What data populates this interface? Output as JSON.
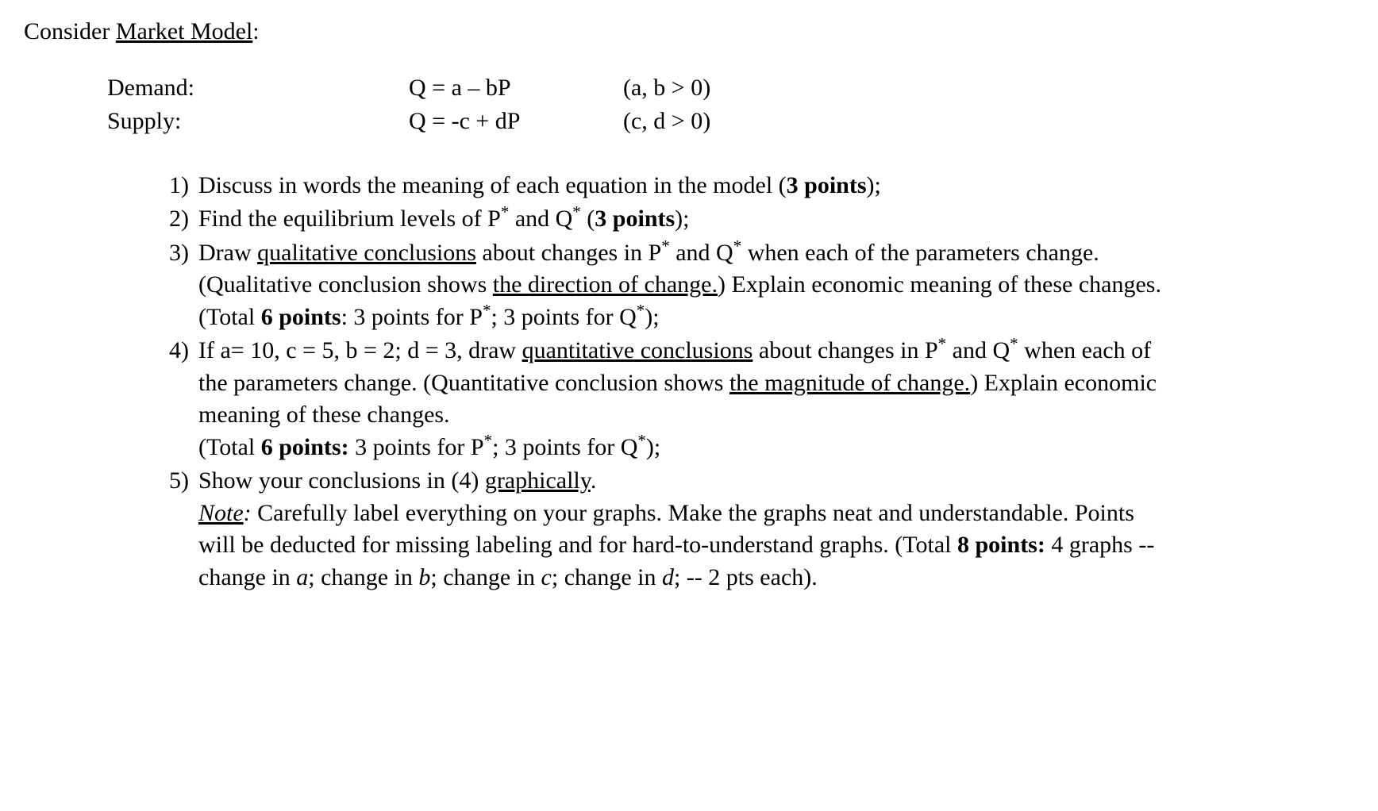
{
  "title_prefix": "Consider ",
  "title_underlined": "Market Model",
  "title_suffix": ":",
  "model": {
    "demand_label": "Demand:",
    "demand_eq": "Q = a – bP",
    "demand_cond": "(a, b > 0)",
    "supply_label": "Supply:",
    "supply_eq": "Q = -c + dP",
    "supply_cond": "(c, d > 0)"
  },
  "questions": [
    {
      "num": "1)",
      "html": "Discuss in words the meaning of each equation in the model (<span class='bold'>3 points</span>);"
    },
    {
      "num": "2)",
      "html": "Find the equilibrium levels of P<sup>*</sup> and Q<sup>*</sup> (<span class='bold'>3 points</span>);"
    },
    {
      "num": "3)",
      "html": "Draw <span class='underline'>qualitative conclusions</span> about changes in P<sup>*</sup> and Q<sup>*</sup> when each of the parameters change. (Qualitative conclusion shows <span class='underline'>the direction of change.</span>) Explain economic meaning of these changes.<br>(Total <span class='bold'>6 points</span>: 3 points for P<sup>*</sup>; 3 points for Q<sup>*</sup>);"
    },
    {
      "num": "4)",
      "html": "If a= 10, c = 5, b = 2; d = 3, draw <span class='underline'>quantitative conclusions</span> about changes in P<sup>*</sup> and Q<sup>*</sup> when each of the parameters change. (Quantitative conclusion shows <span class='underline'>the magnitude of change.</span>) Explain economic meaning of these changes.<br>(Total <span class='bold'>6 points:</span> 3 points for P<sup>*</sup>; 3 points for Q<sup>*</sup>);"
    },
    {
      "num": "5)",
      "html": "Show your conclusions in (4) <span class='underline'>graphically</span>.<br><span class='italic underline'>Note</span><span class='italic'>:</span> Carefully label everything on your graphs. Make the graphs neat and understandable. Points will be deducted for missing labeling and for hard-to-understand graphs. (Total <span class='bold'>8 points:</span> 4 graphs -- change in <span class='italic'>a</span>; change in <span class='italic'>b</span>; change in <span class='italic'>c</span>; change in <span class='italic'>d</span>; -- 2 pts each)."
    }
  ]
}
